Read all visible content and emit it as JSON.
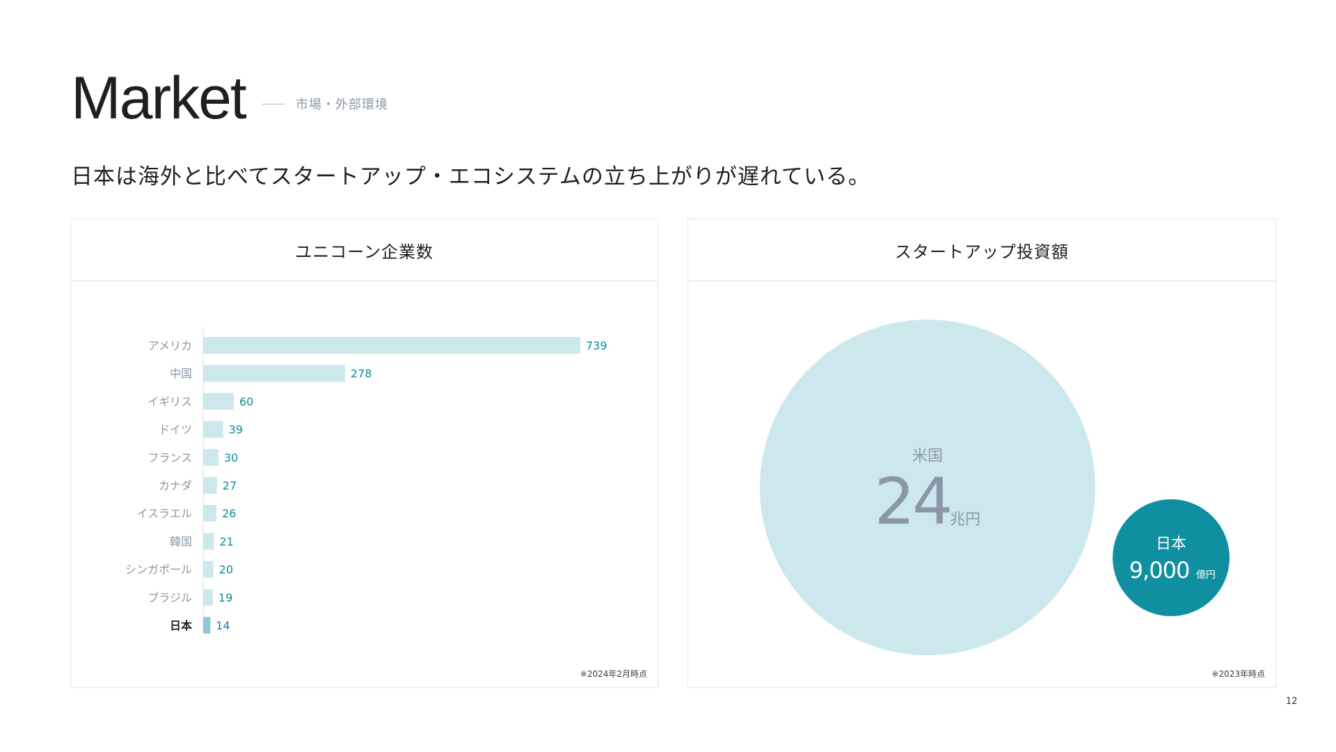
{
  "header": {
    "title": "Market",
    "subtitle": "市場・外部環境"
  },
  "lead": "日本は海外と比べてスタートアップ・エコシステムの立ち上がりが遅れている。",
  "colors": {
    "bar": "#cde8ec",
    "bar_highlight": "#8cc9d2",
    "value_text": "#0e8a98",
    "label_text": "#8b97a8",
    "big_circle": "#cde8ec",
    "small_circle": "#0f8fa0"
  },
  "left_panel": {
    "title": "ユニコーン企業数",
    "note": "※2024年2月時点"
  },
  "right_panel": {
    "title": "スタートアップ投資額",
    "note": "※2023年時点"
  },
  "chart_data": [
    {
      "type": "bar",
      "orientation": "horizontal",
      "title": "ユニコーン企業数",
      "categories": [
        "アメリカ",
        "中国",
        "イギリス",
        "ドイツ",
        "フランス",
        "カナダ",
        "イスラエル",
        "韓国",
        "シンガポール",
        "ブラジル",
        "日本"
      ],
      "values": [
        739,
        278,
        60,
        39,
        30,
        27,
        26,
        21,
        20,
        19,
        14
      ],
      "highlight": "日本",
      "xlim": [
        0,
        739
      ],
      "grid": false
    },
    {
      "type": "bubble",
      "title": "スタートアップ投資額",
      "items": [
        {
          "label": "米国",
          "value_text": "24",
          "unit": "兆円",
          "value_oku_yen": 240000
        },
        {
          "label": "日本",
          "value_text": "9,000",
          "unit": "億円",
          "value_oku_yen": 9000
        }
      ]
    }
  ],
  "page_number": "12"
}
